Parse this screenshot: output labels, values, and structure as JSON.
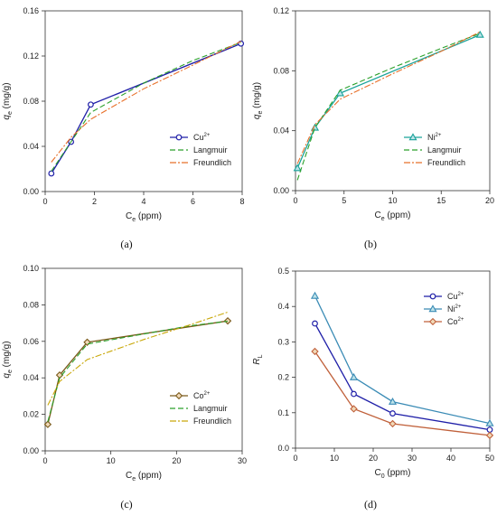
{
  "chart_data": [
    {
      "type": "line",
      "panel_label": "(a)",
      "xlabel": "C",
      "xlabel_sub": "e",
      "xlabel_unit": " (ppm)",
      "ylabel": "q",
      "ylabel_sub": "e",
      "ylabel_unit": " (mg/g)",
      "xlim": [
        0,
        8
      ],
      "ylim": [
        0,
        0.16
      ],
      "xticks": [
        "0",
        "2",
        "4",
        "6",
        "8"
      ],
      "yticks": [
        "0.00",
        "0.04",
        "0.08",
        "0.12",
        "0.16"
      ],
      "legend_position": "lower-right",
      "series": [
        {
          "name": "Cu",
          "sup": "2+",
          "color": "#1f1fa8",
          "marker": "circle",
          "style": "solid",
          "x": [
            0.25,
            1.05,
            1.85,
            7.95
          ],
          "y": [
            0.016,
            0.044,
            0.077,
            0.131
          ]
        },
        {
          "name": "Langmuir",
          "color": "#2aa02a",
          "marker": "none",
          "style": "dashed",
          "x": [
            0.25,
            1.05,
            1.85,
            4.0,
            6.0,
            7.95
          ],
          "y": [
            0.018,
            0.044,
            0.07,
            0.096,
            0.116,
            0.132
          ]
        },
        {
          "name": "Freundlich",
          "color": "#e8702a",
          "marker": "none",
          "style": "dashdot",
          "x": [
            0.25,
            1.05,
            1.85,
            4.0,
            6.0,
            7.95
          ],
          "y": [
            0.026,
            0.048,
            0.064,
            0.091,
            0.112,
            0.133
          ]
        }
      ]
    },
    {
      "type": "line",
      "panel_label": "(b)",
      "xlabel": "C",
      "xlabel_sub": "e",
      "xlabel_unit": " (ppm)",
      "ylabel": "q",
      "ylabel_sub": "e",
      "ylabel_unit": " (mg/g)",
      "xlim": [
        0,
        20
      ],
      "ylim": [
        0,
        0.12
      ],
      "xticks": [
        "0",
        "5",
        "10",
        "15",
        "20"
      ],
      "yticks": [
        "0.00",
        "0.04",
        "0.08",
        "0.12"
      ],
      "legend_position": "lower-right",
      "series": [
        {
          "name": "Ni",
          "sup": "2+",
          "color": "#1aa39a",
          "marker": "triangle",
          "style": "solid",
          "x": [
            0.2,
            2.0,
            4.6,
            19.0
          ],
          "y": [
            0.015,
            0.042,
            0.065,
            0.104
          ]
        },
        {
          "name": "Langmuir",
          "color": "#2aa02a",
          "marker": "none",
          "style": "dashed",
          "x": [
            0.2,
            2.0,
            4.6,
            10,
            15,
            19.0
          ],
          "y": [
            0.007,
            0.042,
            0.067,
            0.082,
            0.095,
            0.105
          ]
        },
        {
          "name": "Freundlich",
          "color": "#e8702a",
          "marker": "none",
          "style": "dashdot",
          "x": [
            0.2,
            2.0,
            4.6,
            10,
            15,
            19.0
          ],
          "y": [
            0.018,
            0.044,
            0.061,
            0.078,
            0.093,
            0.106
          ]
        }
      ]
    },
    {
      "type": "line",
      "panel_label": "(c)",
      "xlabel": "C",
      "xlabel_sub": "e",
      "xlabel_unit": " (ppm)",
      "ylabel": "q",
      "ylabel_sub": "e",
      "ylabel_unit": " (mg/g)",
      "xlim": [
        0,
        30
      ],
      "ylim": [
        0,
        0.1
      ],
      "xticks": [
        "0",
        "10",
        "20",
        "30"
      ],
      "yticks": [
        "0.00",
        "0.02",
        "0.04",
        "0.06",
        "0.08",
        "0.10"
      ],
      "legend_position": "lower-right",
      "series": [
        {
          "name": "Co",
          "sup": "2+",
          "color": "#7a5a1a",
          "marker": "diamond",
          "style": "solid",
          "x": [
            0.4,
            2.2,
            6.4,
            27.8
          ],
          "y": [
            0.0145,
            0.0415,
            0.0595,
            0.0712
          ]
        },
        {
          "name": "Langmuir",
          "color": "#2aa02a",
          "marker": "none",
          "style": "dashed",
          "x": [
            0.4,
            2.2,
            6.4,
            15,
            22,
            27.8
          ],
          "y": [
            0.016,
            0.04,
            0.0585,
            0.064,
            0.0685,
            0.071
          ]
        },
        {
          "name": "Freundlich",
          "color": "#c9a80a",
          "marker": "none",
          "style": "dashdot",
          "x": [
            0.4,
            2.2,
            6.4,
            15,
            22,
            27.8
          ],
          "y": [
            0.025,
            0.038,
            0.05,
            0.061,
            0.069,
            0.076
          ]
        }
      ]
    },
    {
      "type": "line",
      "panel_label": "(d)",
      "xlabel": "C",
      "xlabel_sub": "0",
      "xlabel_unit": " (ppm)",
      "ylabel": "R",
      "ylabel_sub": "L",
      "ylabel_unit": "",
      "xlim": [
        0,
        50
      ],
      "ylim": [
        0,
        0.5
      ],
      "xticks": [
        "0",
        "10",
        "20",
        "30",
        "40",
        "50"
      ],
      "yticks": [
        "0.0",
        "0.1",
        "0.2",
        "0.3",
        "0.4",
        "0.5"
      ],
      "legend_position": "top-right",
      "series": [
        {
          "name": "Cu",
          "sup": "2+",
          "color": "#1f1fa8",
          "marker": "circle",
          "style": "solid",
          "x": [
            5,
            15,
            25,
            50
          ],
          "y": [
            0.352,
            0.153,
            0.098,
            0.052
          ]
        },
        {
          "name": "Ni",
          "sup": "2+",
          "color": "#3a8bb5",
          "marker": "triangle",
          "style": "solid",
          "x": [
            5,
            15,
            25,
            50
          ],
          "y": [
            0.43,
            0.2,
            0.131,
            0.07
          ]
        },
        {
          "name": "Co",
          "sup": "2+",
          "color": "#c0603a",
          "marker": "diamond",
          "style": "solid",
          "x": [
            5,
            15,
            25,
            50
          ],
          "y": [
            0.273,
            0.111,
            0.069,
            0.036
          ]
        }
      ]
    }
  ]
}
